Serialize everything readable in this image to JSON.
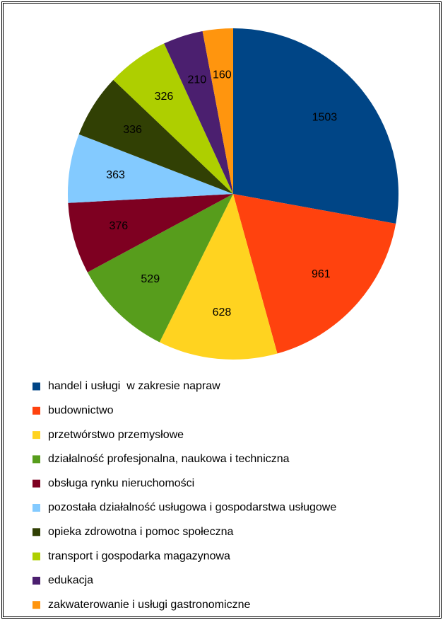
{
  "chart_data": {
    "type": "pie",
    "categories": [
      "handel i usługi  w zakresie napraw",
      "budownictwo",
      "przetwórstwo przemysłowe",
      "działalność profesjonalna, naukowa i techniczna",
      "obsługa rynku nieruchomości",
      "pozostała działalność usługowa i gospodarstwa usługowe",
      "opieka zdrowotna i pomoc społeczna",
      "transport i gospodarka magazynowa",
      "edukacja",
      "zakwaterowanie i usługi gastronomiczne"
    ],
    "values": [
      1503,
      961,
      628,
      529,
      376,
      363,
      336,
      326,
      210,
      160
    ],
    "colors": [
      "#004586",
      "#ff420e",
      "#ffd320",
      "#579d1c",
      "#7e0021",
      "#83caff",
      "#314004",
      "#aecf00",
      "#4b1f6f",
      "#ff950e"
    ],
    "legend": "bottom"
  }
}
